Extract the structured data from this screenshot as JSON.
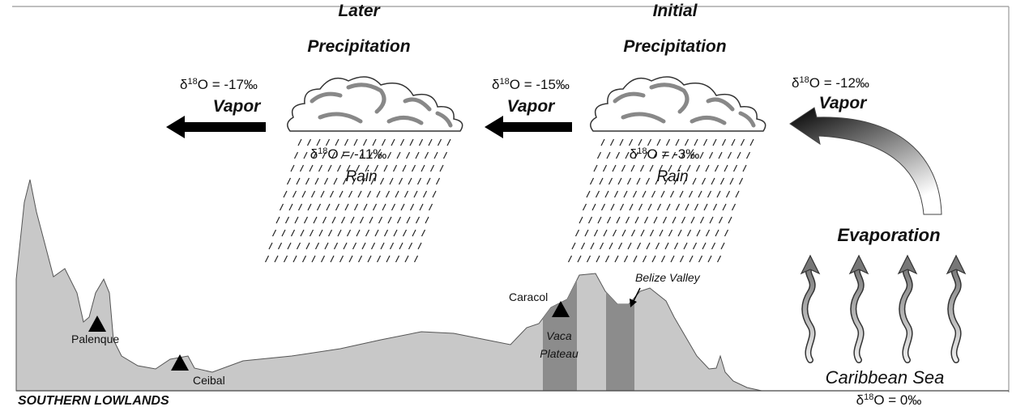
{
  "clouds": [
    {
      "title": [
        "Later",
        "Precipitation"
      ],
      "rain": {
        "isotope": {
          "symbol": "δ",
          "superscript": "18",
          "text": "O = -11‰"
        },
        "label": "Rain"
      }
    },
    {
      "title": [
        "Initial",
        "Precipitation"
      ],
      "rain": {
        "isotope": {
          "symbol": "δ",
          "superscript": "18",
          "text": "O = -3‰"
        },
        "label": "Rain"
      }
    }
  ],
  "vapor": [
    {
      "isotope": {
        "symbol": "δ",
        "superscript": "18",
        "text": "O = -17‰"
      },
      "label": "Vapor"
    },
    {
      "isotope": {
        "symbol": "δ",
        "superscript": "18",
        "text": "O = -15‰"
      },
      "label": "Vapor"
    },
    {
      "isotope": {
        "symbol": "δ",
        "superscript": "18",
        "text": "O = -12‰"
      },
      "label": "Vapor"
    }
  ],
  "evaporation": "Evaporation",
  "sea": {
    "label": "Caribbean Sea",
    "isotope": {
      "symbol": "δ",
      "superscript": "18",
      "text": "O = 0‰"
    }
  },
  "region": "SOUTHERN LOWLANDS",
  "sites": {
    "palenque": "Palenque",
    "ceibal": "Ceibal",
    "caracol": "Caracol",
    "vaca_plateau": [
      "Vaca",
      "Plateau"
    ],
    "belize_valley": "Belize Valley"
  }
}
